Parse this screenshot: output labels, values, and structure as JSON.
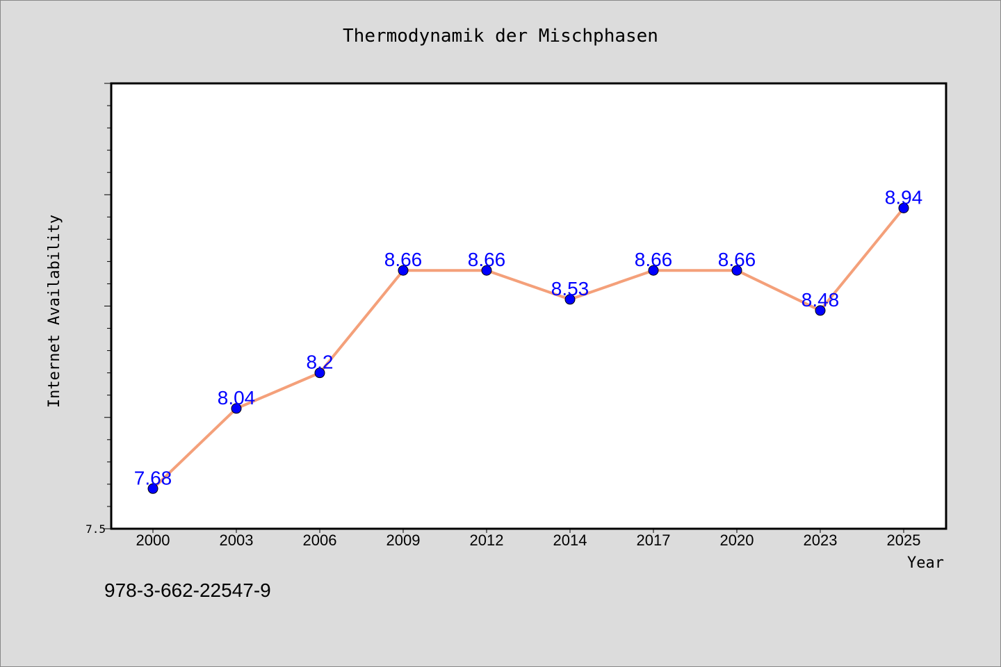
{
  "chart_data": {
    "type": "line",
    "title": "Thermodynamik der Mischphasen",
    "xlabel": "Year",
    "ylabel": "Internet Availability",
    "categories": [
      "2000",
      "2003",
      "2006",
      "2009",
      "2012",
      "2014",
      "2017",
      "2020",
      "2023",
      "2025"
    ],
    "series": [
      {
        "values": [
          7.68,
          8.04,
          8.2,
          8.66,
          8.66,
          8.53,
          8.66,
          8.66,
          8.48,
          8.94
        ]
      }
    ],
    "data_labels": [
      "7.68",
      "8.04",
      "8.2",
      "8.66",
      "8.66",
      "8.53",
      "8.66",
      "8.66",
      "8.48",
      "8.94"
    ],
    "ylim": [
      7.5,
      9.5
    ],
    "y_tick_labels": [
      "7.5"
    ],
    "grid": false,
    "line_color": "#f4a07a",
    "marker_color": "#0000ff",
    "label_color": "#0000ff"
  },
  "footer": {
    "code": "978-3-662-22547-9"
  }
}
